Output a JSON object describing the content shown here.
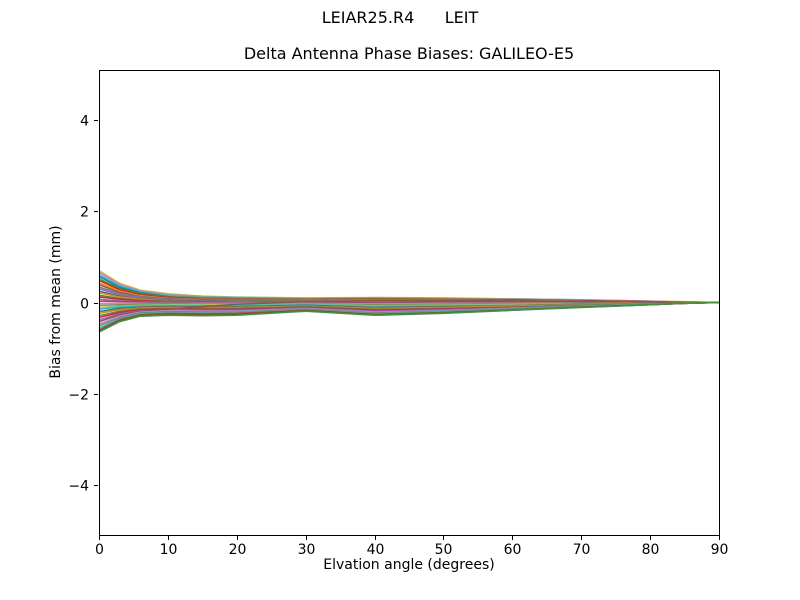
{
  "figure": {
    "suptitle": "LEIAR25.R4      LEIT",
    "background": "#ffffff",
    "text_color": "#000000"
  },
  "chart_data": {
    "type": "line",
    "title": "Delta Antenna Phase Biases: GALILEO-E5",
    "xlabel": "Elvation angle (degrees)",
    "ylabel": "Bias from mean (mm)",
    "xlim": [
      0,
      90
    ],
    "ylim": [
      -5.1,
      5.1
    ],
    "xticks": [
      0,
      10,
      20,
      30,
      40,
      50,
      60,
      70,
      80,
      90
    ],
    "yticks": [
      {
        "v": -4,
        "label": "−4"
      },
      {
        "v": -2,
        "label": "−2"
      },
      {
        "v": 0,
        "label": "0"
      },
      {
        "v": 2,
        "label": "2"
      },
      {
        "v": 4,
        "label": "4"
      }
    ],
    "grid": false,
    "legend": "none",
    "line_width": 1.5,
    "x": [
      0,
      3,
      6,
      10,
      15,
      20,
      30,
      40,
      50,
      60,
      70,
      80,
      85,
      90
    ],
    "series": [
      {
        "color": "#bcbd22",
        "y": [
          0.7,
          0.42,
          0.27,
          0.19,
          0.14,
          0.12,
          0.1,
          0.11,
          0.1,
          0.08,
          0.06,
          0.03,
          0.02,
          0.0
        ]
      },
      {
        "color": "#e377c2",
        "y": [
          0.66,
          0.39,
          0.25,
          0.17,
          0.13,
          0.11,
          0.09,
          0.1,
          0.09,
          0.08,
          0.06,
          0.03,
          0.01,
          0.0
        ]
      },
      {
        "color": "#17becf",
        "y": [
          0.61,
          0.36,
          0.23,
          0.15,
          0.11,
          0.1,
          0.08,
          0.09,
          0.08,
          0.07,
          0.05,
          0.02,
          0.01,
          0.0
        ]
      },
      {
        "color": "#1f77b4",
        "y": [
          0.57,
          0.33,
          0.21,
          0.13,
          0.07,
          0.03,
          -0.02,
          -0.05,
          -0.05,
          -0.04,
          -0.03,
          -0.01,
          0.0,
          0.0
        ]
      },
      {
        "color": "#2ca02c",
        "y": [
          0.52,
          0.3,
          0.19,
          0.12,
          0.1,
          0.08,
          0.07,
          0.08,
          0.07,
          0.06,
          0.04,
          0.02,
          0.01,
          0.0
        ]
      },
      {
        "color": "#d62728",
        "y": [
          0.48,
          0.28,
          0.17,
          0.11,
          0.08,
          0.07,
          0.06,
          0.07,
          0.06,
          0.05,
          0.04,
          0.02,
          0.01,
          0.0
        ]
      },
      {
        "color": "#ff7f0e",
        "y": [
          0.43,
          0.25,
          0.15,
          0.09,
          0.07,
          0.06,
          0.05,
          0.06,
          0.05,
          0.04,
          0.03,
          0.01,
          0.01,
          0.0
        ]
      },
      {
        "color": "#8c564b",
        "y": [
          0.39,
          0.22,
          0.13,
          0.08,
          0.06,
          0.05,
          0.04,
          0.05,
          0.04,
          0.04,
          0.03,
          0.01,
          0.0,
          0.0
        ]
      },
      {
        "color": "#7f7f7f",
        "y": [
          0.34,
          0.19,
          0.12,
          0.07,
          0.05,
          0.04,
          0.04,
          0.04,
          0.03,
          0.03,
          0.02,
          0.01,
          0.0,
          0.0
        ]
      },
      {
        "color": "#9467bd",
        "y": [
          0.3,
          0.17,
          0.1,
          0.06,
          0.04,
          0.03,
          0.03,
          0.03,
          0.03,
          0.02,
          0.02,
          0.01,
          0.0,
          0.0
        ]
      },
      {
        "color": "#1f77b4",
        "y": [
          0.25,
          0.14,
          0.08,
          0.05,
          0.03,
          0.03,
          0.02,
          0.02,
          0.02,
          0.02,
          0.01,
          0.01,
          0.0,
          0.0
        ]
      },
      {
        "color": "#ff7f0e",
        "y": [
          0.21,
          0.12,
          0.07,
          0.04,
          0.02,
          0.02,
          0.01,
          0.01,
          0.01,
          0.01,
          0.01,
          0.0,
          0.0,
          0.0
        ]
      },
      {
        "color": "#2ca02c",
        "y": [
          0.16,
          0.09,
          0.05,
          0.03,
          0.02,
          0.01,
          0.01,
          0.0,
          0.01,
          0.01,
          0.0,
          0.0,
          0.0,
          0.0
        ]
      },
      {
        "color": "#d62728",
        "y": [
          0.12,
          0.07,
          0.04,
          0.02,
          0.01,
          0.0,
          0.0,
          -0.01,
          0.0,
          0.0,
          0.0,
          0.0,
          0.0,
          0.0
        ]
      },
      {
        "color": "#9467bd",
        "y": [
          0.07,
          0.04,
          0.02,
          0.01,
          0.0,
          0.0,
          -0.01,
          -0.01,
          -0.01,
          0.0,
          0.0,
          0.0,
          0.0,
          0.0
        ]
      },
      {
        "color": "#8c564b",
        "y": [
          0.03,
          0.02,
          0.01,
          0.0,
          -0.01,
          -0.01,
          -0.01,
          -0.02,
          -0.01,
          -0.01,
          -0.01,
          0.0,
          0.0,
          0.0
        ]
      },
      {
        "color": "#e377c2",
        "y": [
          -0.02,
          -0.02,
          -0.02,
          -0.02,
          -0.02,
          -0.02,
          -0.02,
          -0.03,
          -0.02,
          -0.02,
          -0.01,
          0.0,
          0.0,
          0.0
        ]
      },
      {
        "color": "#7f7f7f",
        "y": [
          -0.06,
          -0.05,
          -0.04,
          -0.03,
          -0.04,
          -0.04,
          -0.03,
          -0.05,
          -0.04,
          -0.03,
          -0.02,
          -0.01,
          0.0,
          0.0
        ]
      },
      {
        "color": "#bcbd22",
        "y": [
          -0.11,
          -0.08,
          -0.06,
          -0.05,
          -0.05,
          -0.05,
          -0.04,
          -0.07,
          -0.06,
          -0.04,
          -0.03,
          -0.01,
          0.0,
          0.0
        ]
      },
      {
        "color": "#17becf",
        "y": [
          -0.15,
          -0.1,
          -0.08,
          -0.07,
          -0.07,
          -0.07,
          -0.05,
          -0.09,
          -0.08,
          -0.06,
          -0.04,
          -0.02,
          -0.01,
          0.0
        ]
      },
      {
        "color": "#1f77b4",
        "y": [
          -0.2,
          -0.13,
          -0.1,
          -0.09,
          -0.09,
          -0.09,
          -0.06,
          -0.11,
          -0.09,
          -0.07,
          -0.04,
          -0.02,
          -0.01,
          0.0
        ]
      },
      {
        "color": "#ff7f0e",
        "y": [
          -0.24,
          -0.16,
          -0.12,
          -0.11,
          -0.11,
          -0.11,
          -0.08,
          -0.13,
          -0.11,
          -0.08,
          -0.05,
          -0.02,
          -0.01,
          0.0
        ]
      },
      {
        "color": "#2ca02c",
        "y": [
          -0.29,
          -0.19,
          -0.14,
          -0.13,
          -0.13,
          -0.13,
          -0.09,
          -0.15,
          -0.13,
          -0.1,
          -0.06,
          -0.03,
          -0.01,
          0.0
        ]
      },
      {
        "color": "#d62728",
        "y": [
          -0.33,
          -0.22,
          -0.16,
          -0.14,
          -0.15,
          -0.15,
          -0.11,
          -0.17,
          -0.14,
          -0.11,
          -0.07,
          -0.03,
          -0.01,
          0.0
        ]
      },
      {
        "color": "#9467bd",
        "y": [
          -0.38,
          -0.25,
          -0.18,
          -0.16,
          -0.17,
          -0.17,
          -0.12,
          -0.19,
          -0.16,
          -0.12,
          -0.07,
          -0.03,
          -0.01,
          0.0
        ]
      },
      {
        "color": "#8c564b",
        "y": [
          -0.42,
          -0.27,
          -0.19,
          -0.15,
          -0.09,
          -0.04,
          0.02,
          0.04,
          0.04,
          0.03,
          0.02,
          0.01,
          0.0,
          0.0
        ]
      },
      {
        "color": "#e377c2",
        "y": [
          -0.47,
          -0.3,
          -0.21,
          -0.18,
          -0.19,
          -0.19,
          -0.14,
          -0.21,
          -0.18,
          -0.13,
          -0.08,
          -0.04,
          -0.01,
          0.0
        ]
      },
      {
        "color": "#7f7f7f",
        "y": [
          -0.51,
          -0.33,
          -0.23,
          -0.2,
          -0.21,
          -0.21,
          -0.15,
          -0.23,
          -0.19,
          -0.14,
          -0.08,
          -0.04,
          -0.02,
          0.0
        ]
      },
      {
        "color": "#17becf",
        "y": [
          -0.56,
          -0.36,
          -0.25,
          -0.22,
          -0.23,
          -0.22,
          -0.16,
          -0.25,
          -0.2,
          -0.15,
          -0.09,
          -0.04,
          -0.02,
          0.0
        ]
      },
      {
        "color": "#8c564b",
        "y": [
          -0.6,
          -0.38,
          -0.27,
          -0.24,
          -0.25,
          -0.24,
          -0.17,
          -0.26,
          -0.22,
          -0.16,
          -0.1,
          -0.05,
          -0.02,
          0.0
        ]
      },
      {
        "color": "#d62728",
        "y": [
          -0.63,
          -0.4,
          -0.29,
          -0.26,
          -0.27,
          -0.26,
          -0.18,
          -0.27,
          -0.23,
          -0.17,
          -0.1,
          -0.05,
          -0.02,
          0.0
        ]
      },
      {
        "color": "#2ca02c",
        "y": [
          -0.65,
          -0.42,
          -0.3,
          -0.28,
          -0.29,
          -0.28,
          -0.19,
          -0.28,
          -0.24,
          -0.17,
          -0.11,
          -0.05,
          -0.02,
          0.0
        ]
      }
    ]
  }
}
